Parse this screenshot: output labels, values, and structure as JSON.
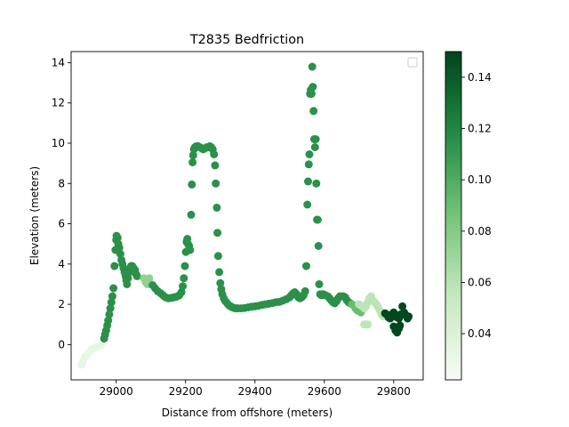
{
  "chart_data": {
    "type": "scatter",
    "title": "T2835 Bedfriction",
    "xlabel": "Distance from offshore (meters)",
    "ylabel": "Elevation (meters)",
    "xlim": [
      28870,
      29885
    ],
    "ylim": [
      -1.75,
      14.55
    ],
    "xticks": [
      29000,
      29200,
      29400,
      29600,
      29800
    ],
    "yticks": [
      0,
      2,
      4,
      6,
      8,
      10,
      12,
      14
    ],
    "grid": false,
    "legend": "upper right (empty)",
    "colormap": {
      "name": "Greens",
      "min": 0.022,
      "max": 0.15,
      "ticks": [
        0.04,
        0.06,
        0.08,
        0.1,
        0.12,
        0.14
      ],
      "tick_labels": [
        "0.04",
        "0.06",
        "0.08",
        "0.10",
        "0.12",
        "0.14"
      ]
    },
    "segments": [
      {
        "xy": [
          [
            28900,
            -1.0
          ],
          [
            28905,
            -0.8
          ],
          [
            28910,
            -0.6
          ],
          [
            28918,
            -0.45
          ],
          [
            28925,
            -0.3
          ],
          [
            28933,
            -0.2
          ],
          [
            28945,
            -0.1
          ],
          [
            28955,
            -0.05
          ]
        ],
        "c": 0.032
      },
      {
        "xy": [
          [
            28965,
            0.3
          ],
          [
            28968,
            0.5
          ],
          [
            28971,
            0.7
          ],
          [
            28974,
            0.95
          ],
          [
            28977,
            1.2
          ],
          [
            28980,
            1.5
          ],
          [
            28983,
            1.8
          ],
          [
            28986,
            2.1
          ],
          [
            28989,
            2.4
          ],
          [
            28992,
            2.8
          ],
          [
            28995,
            3.9
          ],
          [
            28998,
            4.7
          ],
          [
            29000,
            5.2
          ],
          [
            29001,
            5.4
          ],
          [
            29004,
            5.3
          ],
          [
            29006,
            5.0
          ],
          [
            29009,
            4.8
          ],
          [
            29012,
            4.5
          ],
          [
            29015,
            4.2
          ],
          [
            29018,
            4.0
          ],
          [
            29021,
            3.8
          ],
          [
            29024,
            3.6
          ],
          [
            29027,
            3.4
          ],
          [
            29029,
            3.2
          ],
          [
            29031,
            3.0
          ],
          [
            29034,
            3.3
          ],
          [
            29037,
            3.6
          ],
          [
            29040,
            3.8
          ],
          [
            29043,
            3.9
          ],
          [
            29046,
            3.9
          ],
          [
            29050,
            3.8
          ],
          [
            29054,
            3.7
          ],
          [
            29057,
            3.5
          ],
          [
            29060,
            3.4
          ]
        ],
        "c": 0.115
      },
      {
        "xy": [
          [
            29080,
            3.3
          ],
          [
            29085,
            3.1
          ],
          [
            29090,
            3.0
          ],
          [
            29095,
            3.3
          ],
          [
            29100,
            3.0
          ]
        ],
        "c": 0.075
      },
      {
        "xy": [
          [
            29105,
            2.95
          ],
          [
            29112,
            2.8
          ],
          [
            29120,
            2.65
          ],
          [
            29128,
            2.55
          ],
          [
            29135,
            2.45
          ],
          [
            29142,
            2.35
          ],
          [
            29150,
            2.3
          ],
          [
            29158,
            2.32
          ],
          [
            29166,
            2.35
          ],
          [
            29174,
            2.38
          ],
          [
            29182,
            2.45
          ],
          [
            29188,
            2.6
          ],
          [
            29192,
            2.9
          ],
          [
            29195,
            3.3
          ],
          [
            29198,
            3.9
          ],
          [
            29201,
            4.6
          ],
          [
            29203,
            5.1
          ],
          [
            29205,
            5.25
          ],
          [
            29207,
            5.0
          ],
          [
            29210,
            4.9
          ],
          [
            29213,
            4.7
          ],
          [
            29216,
            6.45
          ],
          [
            29218,
            7.95
          ],
          [
            29220,
            9.05
          ],
          [
            29222,
            9.4
          ],
          [
            29224,
            9.7
          ],
          [
            29227,
            9.8
          ],
          [
            29231,
            9.85
          ],
          [
            29236,
            9.85
          ],
          [
            29241,
            9.8
          ],
          [
            29246,
            9.75
          ],
          [
            29251,
            9.7
          ],
          [
            29256,
            9.75
          ],
          [
            29261,
            9.8
          ],
          [
            29266,
            9.8
          ],
          [
            29270,
            9.85
          ],
          [
            29274,
            9.8
          ],
          [
            29278,
            9.7
          ],
          [
            29282,
            9.45
          ],
          [
            29285,
            8.9
          ],
          [
            29287,
            8.0
          ],
          [
            29290,
            6.8
          ],
          [
            29292,
            5.55
          ],
          [
            29294,
            4.4
          ],
          [
            29297,
            3.6
          ],
          [
            29300,
            3.05
          ],
          [
            29303,
            2.75
          ],
          [
            29306,
            2.5
          ],
          [
            29310,
            2.3
          ],
          [
            29315,
            2.15
          ],
          [
            29320,
            2.05
          ],
          [
            29325,
            1.95
          ],
          [
            29330,
            1.9
          ],
          [
            29335,
            1.85
          ],
          [
            29340,
            1.82
          ],
          [
            29345,
            1.8
          ],
          [
            29350,
            1.8
          ],
          [
            29360,
            1.8
          ],
          [
            29370,
            1.82
          ],
          [
            29380,
            1.85
          ],
          [
            29390,
            1.88
          ],
          [
            29400,
            1.9
          ],
          [
            29410,
            1.93
          ],
          [
            29420,
            1.97
          ],
          [
            29430,
            2.0
          ],
          [
            29440,
            2.03
          ],
          [
            29450,
            2.06
          ],
          [
            29460,
            2.1
          ],
          [
            29470,
            2.12
          ],
          [
            29480,
            2.18
          ],
          [
            29490,
            2.25
          ],
          [
            29500,
            2.35
          ],
          [
            29505,
            2.45
          ],
          [
            29510,
            2.55
          ],
          [
            29515,
            2.6
          ],
          [
            29520,
            2.5
          ],
          [
            29525,
            2.35
          ],
          [
            29530,
            2.3
          ],
          [
            29535,
            2.35
          ],
          [
            29540,
            2.45
          ],
          [
            29545,
            2.65
          ],
          [
            29548,
            3.9
          ],
          [
            29551,
            6.95
          ],
          [
            29553,
            8.1
          ],
          [
            29555,
            8.95
          ],
          [
            29557,
            9.45
          ],
          [
            29559,
            12.45
          ],
          [
            29561,
            12.65
          ],
          [
            29563,
            12.45
          ],
          [
            29565,
            13.8
          ],
          [
            29567,
            12.8
          ],
          [
            29569,
            11.6
          ],
          [
            29571,
            10.2
          ],
          [
            29573,
            9.8
          ],
          [
            29575,
            10.2
          ],
          [
            29577,
            8.0
          ],
          [
            29579,
            6.2
          ],
          [
            29581,
            6.2
          ],
          [
            29583,
            4.9
          ],
          [
            29585,
            3.0
          ],
          [
            29588,
            2.5
          ],
          [
            29592,
            2.45
          ],
          [
            29597,
            2.5
          ],
          [
            29603,
            2.45
          ],
          [
            29610,
            2.4
          ],
          [
            29615,
            2.3
          ],
          [
            29620,
            2.2
          ],
          [
            29625,
            2.1
          ],
          [
            29630,
            2.05
          ],
          [
            29635,
            2.15
          ],
          [
            29640,
            2.3
          ],
          [
            29645,
            2.4
          ],
          [
            29650,
            2.4
          ],
          [
            29655,
            2.4
          ],
          [
            29660,
            2.35
          ],
          [
            29665,
            2.2
          ],
          [
            29670,
            2.1
          ],
          [
            29675,
            2.05
          ]
        ],
        "c": 0.115
      },
      {
        "xy": [
          [
            29680,
            2.0
          ],
          [
            29685,
            1.95
          ],
          [
            29690,
            1.8
          ],
          [
            29695,
            1.7
          ],
          [
            29700,
            1.75
          ],
          [
            29705,
            1.6
          ]
        ],
        "c": 0.09
      },
      {
        "xy": [
          [
            29700,
            2.0
          ],
          [
            29705,
            1.95
          ],
          [
            29710,
            1.9
          ],
          [
            29715,
            1.8
          ],
          [
            29720,
            1.9
          ],
          [
            29725,
            2.1
          ],
          [
            29730,
            2.3
          ],
          [
            29735,
            2.4
          ],
          [
            29740,
            2.2
          ],
          [
            29745,
            2.1
          ],
          [
            29750,
            2.0
          ],
          [
            29755,
            1.85
          ],
          [
            29760,
            1.7
          ],
          [
            29765,
            1.5
          ],
          [
            29770,
            1.4
          ],
          [
            29715,
            1.0
          ],
          [
            29720,
            1.0
          ],
          [
            29725,
            1.0
          ]
        ],
        "c": 0.058
      },
      {
        "xy": [
          [
            29775,
            1.55
          ],
          [
            29780,
            1.5
          ],
          [
            29785,
            1.35
          ],
          [
            29790,
            1.3
          ],
          [
            29795,
            1.5
          ],
          [
            29800,
            1.6
          ],
          [
            29805,
            1.45
          ],
          [
            29810,
            1.35
          ],
          [
            29815,
            1.3
          ],
          [
            29820,
            1.5
          ],
          [
            29825,
            1.9
          ],
          [
            29830,
            1.6
          ],
          [
            29835,
            1.45
          ],
          [
            29840,
            1.3
          ],
          [
            29843,
            1.4
          ],
          [
            29800,
            0.9
          ],
          [
            29805,
            0.7
          ],
          [
            29810,
            0.6
          ],
          [
            29815,
            0.8
          ],
          [
            29818,
            0.95
          ]
        ],
        "c": 0.148
      }
    ]
  }
}
